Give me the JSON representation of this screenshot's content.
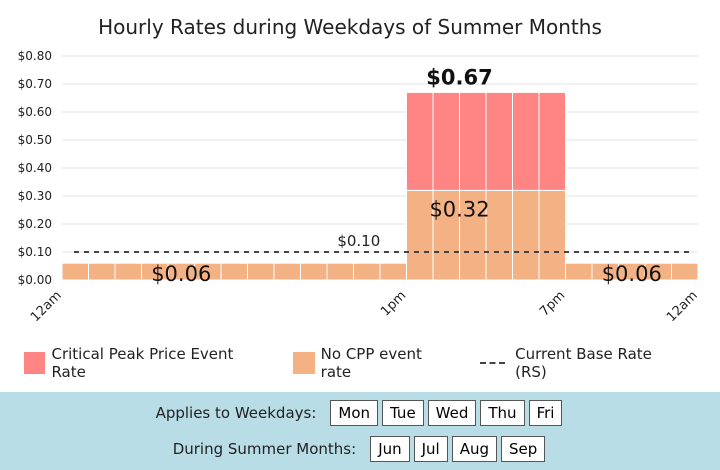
{
  "chart_data": {
    "type": "bar",
    "title": "Hourly Rates during Weekdays of Summer Months",
    "y_ticks": [
      "$0.00",
      "$0.10",
      "$0.20",
      "$0.30",
      "$0.40",
      "$0.50",
      "$0.60",
      "$0.70",
      "$0.80"
    ],
    "ylim": [
      0,
      0.8
    ],
    "grid": true,
    "x_tick_labels": [
      {
        "hour": 0,
        "label": "12am"
      },
      {
        "hour": 13,
        "label": "1pm"
      },
      {
        "hour": 19,
        "label": "7pm"
      },
      {
        "hour": 24,
        "label": "12am"
      }
    ],
    "hours": [
      0,
      1,
      2,
      3,
      4,
      5,
      6,
      7,
      8,
      9,
      10,
      11,
      12,
      13,
      14,
      15,
      16,
      17,
      18,
      19,
      20,
      21,
      22,
      23
    ],
    "series": [
      {
        "name": "No CPP event rate",
        "color": "#f4b183",
        "values": [
          0.06,
          0.06,
          0.06,
          0.06,
          0.06,
          0.06,
          0.06,
          0.06,
          0.06,
          0.06,
          0.06,
          0.06,
          0.06,
          0.32,
          0.32,
          0.32,
          0.32,
          0.32,
          0.32,
          0.06,
          0.06,
          0.06,
          0.06,
          0.06
        ]
      },
      {
        "name": "Critical Peak Price Event Rate",
        "color": "#ff8585",
        "values": [
          null,
          null,
          null,
          null,
          null,
          null,
          null,
          null,
          null,
          null,
          null,
          null,
          null,
          0.67,
          0.67,
          0.67,
          0.67,
          0.67,
          0.67,
          null,
          null,
          null,
          null,
          null
        ]
      }
    ],
    "base_rate": {
      "name": "Current Base Rate (RS)",
      "value": 0.1,
      "label": "$0.10"
    },
    "annotations": [
      {
        "text": "$0.67",
        "hour": 15.0,
        "value": 0.67
      },
      {
        "text": "$0.32",
        "hour": 15.0,
        "value": 0.32
      },
      {
        "text": "$0.06",
        "hour": 4.5,
        "value": 0.06
      },
      {
        "text": "$0.06",
        "hour": 21.5,
        "value": 0.06
      }
    ]
  },
  "legend": [
    {
      "label": "Critical Peak Price Event Rate",
      "color": "#ff8585",
      "kind": "box"
    },
    {
      "label": "No CPP event rate",
      "color": "#f4b183",
      "kind": "box"
    },
    {
      "label": "Current Base Rate (RS)",
      "color": "#444444",
      "kind": "dash"
    }
  ],
  "controls": {
    "weekdays_label": "Applies to Weekdays:",
    "weekdays": [
      "Mon",
      "Tue",
      "Wed",
      "Thu",
      "Fri"
    ],
    "months_label": "During Summer Months:",
    "months": [
      "Jun",
      "Jul",
      "Aug",
      "Sep"
    ]
  }
}
